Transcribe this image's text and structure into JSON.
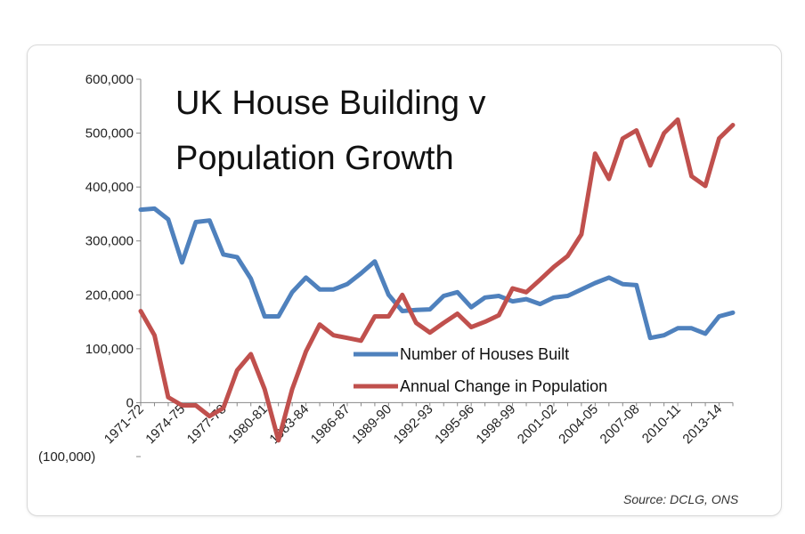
{
  "chart_data": {
    "type": "line",
    "title_lines": [
      "UK House Building v",
      "Population Growth"
    ],
    "source": "Source:  DCLG, ONS",
    "ylim": [
      -100000,
      600000
    ],
    "y_ticks": [
      {
        "value": 600000,
        "label": "600,000"
      },
      {
        "value": 500000,
        "label": "500,000"
      },
      {
        "value": 400000,
        "label": "400,000"
      },
      {
        "value": 300000,
        "label": "300,000"
      },
      {
        "value": 200000,
        "label": "200,000"
      },
      {
        "value": 100000,
        "label": "100,000"
      },
      {
        "value": 0,
        "label": "0"
      },
      {
        "value": -100000,
        "label": "(100,000)"
      }
    ],
    "categories": [
      "1971-72",
      "1972-73",
      "1973-74",
      "1974-75",
      "1975-76",
      "1976-77",
      "1977-78",
      "1978-79",
      "1979-80",
      "1980-81",
      "1981-82",
      "1982-83",
      "1983-84",
      "1984-85",
      "1985-86",
      "1986-87",
      "1987-88",
      "1988-89",
      "1989-90",
      "1990-91",
      "1991-92",
      "1992-93",
      "1993-94",
      "1994-95",
      "1995-96",
      "1996-97",
      "1997-98",
      "1998-99",
      "1999-00",
      "2000-01",
      "2001-02",
      "2002-03",
      "2003-04",
      "2004-05",
      "2005-06",
      "2006-07",
      "2007-08",
      "2008-09",
      "2009-10",
      "2010-11",
      "2011-12",
      "2012-13",
      "2013-14",
      "2014-15"
    ],
    "labeled_categories": [
      "1971-72",
      "1974-75",
      "1977-78",
      "1980-81",
      "1983-84",
      "1986-87",
      "1989-90",
      "1992-93",
      "1995-96",
      "1998-99",
      "2001-02",
      "2004-05",
      "2007-08",
      "2010-11",
      "2013-14"
    ],
    "series": [
      {
        "name": "Number of Houses Built",
        "color": "#4F81BD",
        "values": [
          358000,
          360000,
          340000,
          260000,
          335000,
          338000,
          275000,
          270000,
          230000,
          160000,
          160000,
          205000,
          232000,
          210000,
          210000,
          220000,
          240000,
          262000,
          200000,
          170000,
          172000,
          173000,
          198000,
          205000,
          177000,
          195000,
          198000,
          188000,
          192000,
          183000,
          195000,
          198000,
          210000,
          222000,
          232000,
          220000,
          218000,
          120000,
          125000,
          138000,
          138000,
          128000,
          160000,
          167000
        ]
      },
      {
        "name": "Annual Change in Population",
        "color": "#C0504D",
        "values": [
          170000,
          125000,
          10000,
          -5000,
          -5000,
          -25000,
          -10000,
          60000,
          90000,
          25000,
          -70000,
          25000,
          95000,
          145000,
          125000,
          120000,
          115000,
          160000,
          160000,
          200000,
          148000,
          130000,
          148000,
          165000,
          140000,
          150000,
          162000,
          212000,
          205000,
          228000,
          252000,
          272000,
          312000,
          462000,
          415000,
          490000,
          505000,
          440000,
          500000,
          525000,
          420000,
          402000,
          490000,
          515000
        ]
      }
    ],
    "grid": false,
    "legend_position": "center-right"
  }
}
